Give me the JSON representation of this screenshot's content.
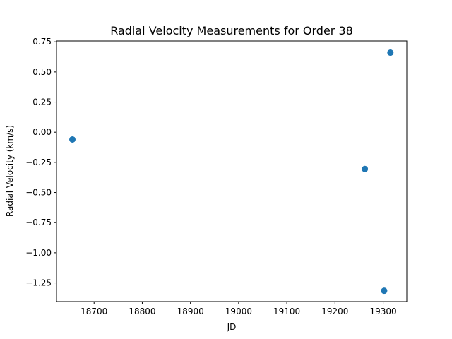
{
  "chart_data": {
    "type": "scatter",
    "title": "Radial Velocity Measurements for Order 38",
    "xlabel": "JD",
    "ylabel": "Radial Velocity (km/s)",
    "xlim": [
      18622,
      19349
    ],
    "ylim": [
      -1.405,
      0.757
    ],
    "xticks": [
      18700,
      18800,
      18900,
      19000,
      19100,
      19200,
      19300
    ],
    "xtick_labels": [
      "18700",
      "18800",
      "18900",
      "19000",
      "19100",
      "19200",
      "19300"
    ],
    "yticks": [
      0.75,
      0.5,
      0.25,
      0.0,
      -0.25,
      -0.5,
      -0.75,
      -1.0,
      -1.25
    ],
    "ytick_labels": [
      "0.75",
      "0.50",
      "0.25",
      "0.00",
      "−0.25",
      "−0.50",
      "−0.75",
      "−1.00",
      "−1.25"
    ],
    "grid": false,
    "series": [
      {
        "color": "#1f77b4",
        "points": [
          {
            "x": 18655,
            "y": -0.06
          },
          {
            "x": 19262,
            "y": -0.305
          },
          {
            "x": 19302,
            "y": -1.315
          },
          {
            "x": 19315,
            "y": 0.66
          }
        ]
      }
    ]
  }
}
